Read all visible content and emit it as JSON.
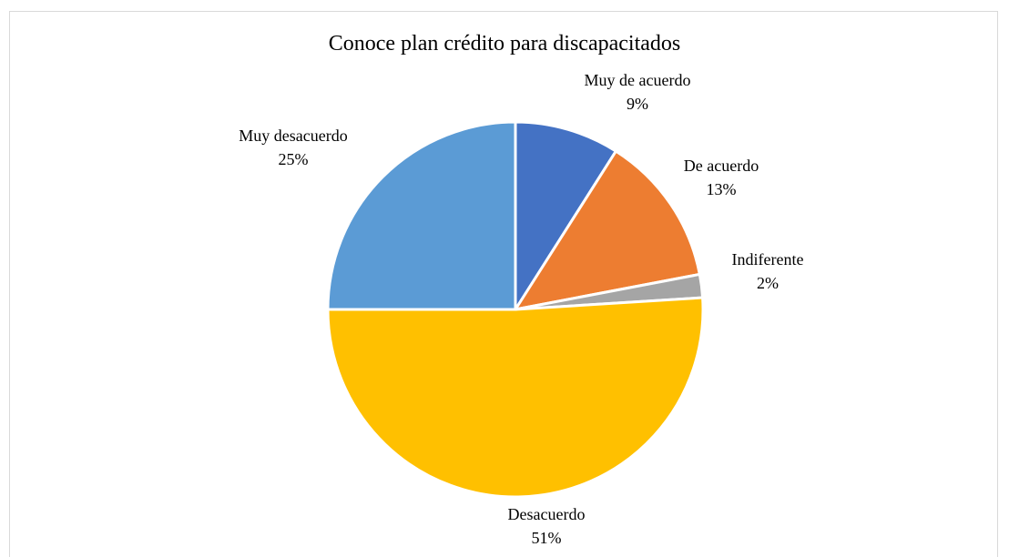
{
  "chart_data": {
    "type": "pie",
    "title": "Conoce plan crédito para discapacitados",
    "categories": [
      "Muy de acuerdo",
      "De acuerdo",
      "Indiferente",
      "Desacuerdo",
      "Muy desacuerdo"
    ],
    "values": [
      9,
      13,
      2,
      51,
      25
    ],
    "value_labels": [
      "9%",
      "13%",
      "2%",
      "51%",
      "25%"
    ],
    "colors": [
      "#4472C4",
      "#ED7D31",
      "#A5A5A5",
      "#FFC000",
      "#5B9BD5"
    ],
    "legend": "none"
  }
}
